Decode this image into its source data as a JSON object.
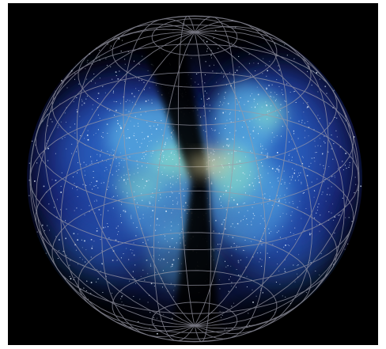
{
  "image": {
    "background_color": "#000000",
    "frame_color": "#ffffff",
    "glow_colors": [
      "#1a2a8a",
      "#2f6fd0",
      "#5fb8e8",
      "#8ee6c8",
      "#e8e0a0"
    ],
    "star_color": "#e6f2ff",
    "grid_color": "#9a9aa8",
    "survey_wedge_color": "#000000"
  }
}
